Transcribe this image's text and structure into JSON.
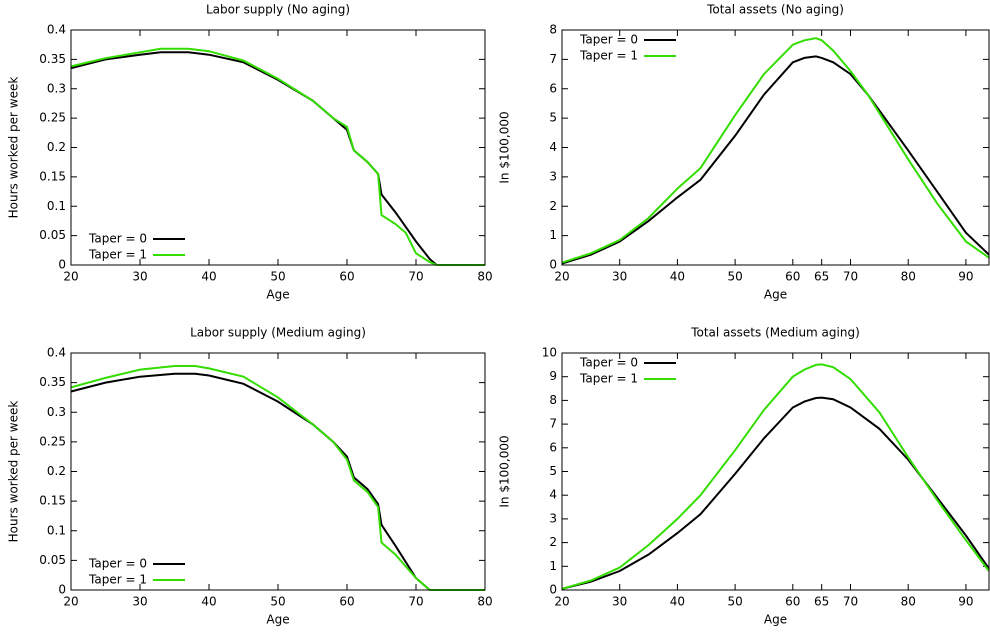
{
  "chart_data": [
    {
      "type": "line",
      "title": "Labor supply (No aging)",
      "xlabel": "Age",
      "ylabel": "Hours worked per week",
      "x": [
        20,
        25,
        30,
        33,
        37,
        40,
        45,
        50,
        55,
        58,
        60,
        61,
        63,
        64.5,
        65,
        67,
        68.5,
        70,
        72,
        73,
        80
      ],
      "series": [
        {
          "name": "Taper = 0",
          "color": "#000000",
          "values": [
            0.335,
            0.35,
            0.358,
            0.362,
            0.362,
            0.358,
            0.345,
            0.315,
            0.28,
            0.25,
            0.23,
            0.195,
            0.175,
            0.155,
            0.12,
            0.09,
            0.065,
            0.04,
            0.01,
            0,
            0
          ]
        },
        {
          "name": "Taper = 1",
          "color": "#33dd00",
          "values": [
            0.338,
            0.352,
            0.362,
            0.368,
            0.368,
            0.364,
            0.348,
            0.317,
            0.28,
            0.25,
            0.235,
            0.195,
            0.175,
            0.155,
            0.085,
            0.07,
            0.055,
            0.02,
            0.005,
            0,
            0
          ]
        }
      ],
      "xlim": [
        20,
        80
      ],
      "xticks": [
        20,
        30,
        40,
        50,
        60,
        70,
        80
      ],
      "ylim": [
        0,
        0.4
      ],
      "yticks": [
        0,
        0.05,
        0.1,
        0.15,
        0.2,
        0.25,
        0.3,
        0.35,
        0.4
      ],
      "legend": "lower left"
    },
    {
      "type": "line",
      "title": "Total assets (No aging)",
      "xlabel": "Age",
      "ylabel": "In $100,000",
      "x": [
        20,
        25,
        30,
        35,
        40,
        44,
        50,
        55,
        60,
        62,
        64,
        65,
        67,
        70,
        73,
        80,
        85,
        90,
        94
      ],
      "series": [
        {
          "name": "Taper = 0",
          "color": "#000000",
          "values": [
            0.05,
            0.35,
            0.8,
            1.5,
            2.3,
            2.9,
            4.4,
            5.8,
            6.9,
            7.05,
            7.1,
            7.05,
            6.9,
            6.5,
            5.8,
            3.9,
            2.5,
            1.1,
            0.35
          ]
        },
        {
          "name": "Taper = 1",
          "color": "#33dd00",
          "values": [
            0.08,
            0.4,
            0.85,
            1.6,
            2.6,
            3.3,
            5.1,
            6.5,
            7.5,
            7.65,
            7.72,
            7.65,
            7.3,
            6.6,
            5.8,
            3.6,
            2.1,
            0.8,
            0.25
          ]
        }
      ],
      "xlim": [
        20,
        94
      ],
      "xticks": [
        20,
        30,
        40,
        50,
        60,
        65,
        70,
        80,
        90
      ],
      "ylim": [
        0,
        8
      ],
      "yticks": [
        0,
        1,
        2,
        3,
        4,
        5,
        6,
        7,
        8
      ],
      "legend": "upper left"
    },
    {
      "type": "line",
      "title": "Labor supply (Medium aging)",
      "xlabel": "Age",
      "ylabel": "Hours worked per week",
      "x": [
        20,
        25,
        30,
        35,
        38,
        40,
        45,
        50,
        55,
        58,
        60,
        61,
        63,
        64.5,
        65,
        67,
        70,
        72,
        80
      ],
      "series": [
        {
          "name": "Taper = 0",
          "color": "#000000",
          "values": [
            0.335,
            0.35,
            0.36,
            0.365,
            0.365,
            0.362,
            0.348,
            0.318,
            0.28,
            0.25,
            0.225,
            0.19,
            0.17,
            0.145,
            0.11,
            0.075,
            0.02,
            0,
            0
          ]
        },
        {
          "name": "Taper = 1",
          "color": "#33dd00",
          "values": [
            0.342,
            0.358,
            0.372,
            0.378,
            0.378,
            0.374,
            0.36,
            0.325,
            0.28,
            0.25,
            0.22,
            0.185,
            0.165,
            0.14,
            0.08,
            0.06,
            0.02,
            0,
            0
          ]
        }
      ],
      "xlim": [
        20,
        80
      ],
      "xticks": [
        20,
        30,
        40,
        50,
        60,
        70,
        80
      ],
      "ylim": [
        0,
        0.4
      ],
      "yticks": [
        0,
        0.05,
        0.1,
        0.15,
        0.2,
        0.25,
        0.3,
        0.35,
        0.4
      ],
      "legend": "lower left"
    },
    {
      "type": "line",
      "title": "Total assets (Medium aging)",
      "xlabel": "Age",
      "ylabel": "In $100,000",
      "x": [
        20,
        25,
        30,
        35,
        40,
        44,
        50,
        55,
        60,
        62,
        64,
        65,
        67,
        70,
        75,
        80,
        85,
        90,
        94
      ],
      "series": [
        {
          "name": "Taper = 0",
          "color": "#000000",
          "values": [
            0.05,
            0.35,
            0.8,
            1.5,
            2.4,
            3.2,
            4.9,
            6.4,
            7.7,
            7.95,
            8.1,
            8.12,
            8.05,
            7.7,
            6.8,
            5.5,
            3.9,
            2.3,
            0.9
          ]
        },
        {
          "name": "Taper = 1",
          "color": "#33dd00",
          "values": [
            0.05,
            0.4,
            0.95,
            1.9,
            3.0,
            4.0,
            5.9,
            7.6,
            9.0,
            9.3,
            9.5,
            9.52,
            9.4,
            8.9,
            7.5,
            5.6,
            3.8,
            2.1,
            0.8
          ]
        }
      ],
      "xlim": [
        20,
        94
      ],
      "xticks": [
        20,
        30,
        40,
        50,
        60,
        65,
        70,
        80,
        90
      ],
      "ylim": [
        0,
        10
      ],
      "yticks": [
        0,
        1,
        2,
        3,
        4,
        5,
        6,
        7,
        8,
        9,
        10
      ],
      "legend": "upper left"
    }
  ]
}
